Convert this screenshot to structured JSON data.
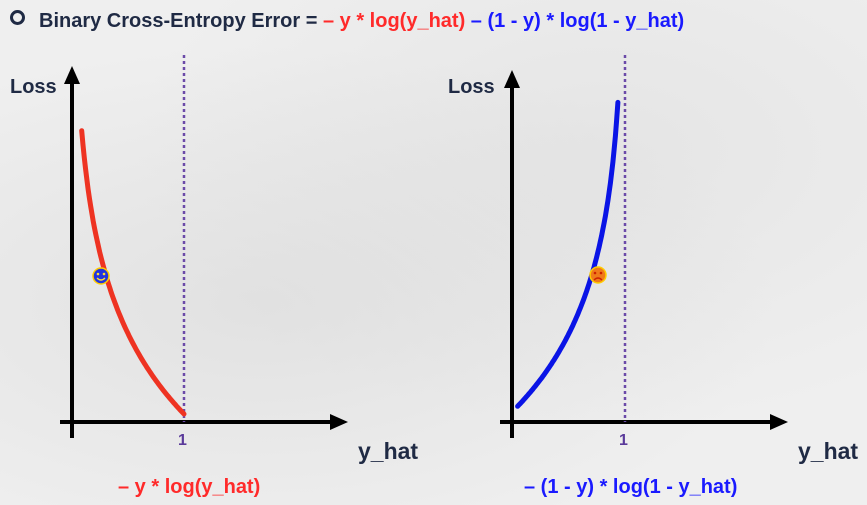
{
  "title": {
    "prefix": "Binary Cross-Entropy Error = ",
    "term1": "– y * log(y_hat)",
    "term2": " – (1 - y) * log(1 - y_hat)"
  },
  "left_plot": {
    "y_axis_label": "Loss",
    "x_axis_label": "y_hat",
    "tick_label": "1",
    "caption": "– y * log(y_hat)",
    "curve_color": "#ee3322",
    "marker_icon": "smiley-face-icon",
    "marker_color": "#2233dd"
  },
  "right_plot": {
    "y_axis_label": "Loss",
    "x_axis_label": "y_hat",
    "tick_label": "1",
    "caption": "– (1 - y) * log(1 - y_hat)",
    "curve_color": "#0a14e6",
    "marker_icon": "frowning-face-icon",
    "marker_color": "#f07a1a"
  },
  "colors": {
    "axis": "#000000",
    "dotted_line": "#6b4aa8",
    "text": "#1f2a44"
  }
}
